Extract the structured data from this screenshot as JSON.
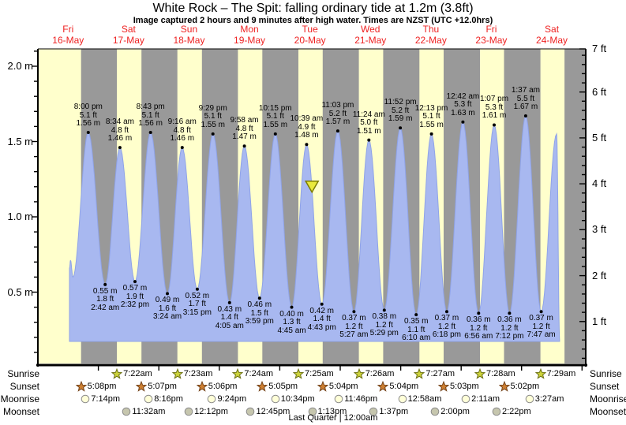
{
  "title": "White Rock – The Spit: falling  ordinary tide at 1.2m (3.8ft)",
  "subtitle": "Image captured 2 hours and 9 minutes after high water. Times are NZST (UTC +12.0hrs)",
  "days": [
    {
      "name": "Fri",
      "date": "16-May"
    },
    {
      "name": "Sat",
      "date": "17-May"
    },
    {
      "name": "Sun",
      "date": "18-May"
    },
    {
      "name": "Mon",
      "date": "19-May"
    },
    {
      "name": "Tue",
      "date": "20-May"
    },
    {
      "name": "Wed",
      "date": "21-May"
    },
    {
      "name": "Thu",
      "date": "22-May"
    },
    {
      "name": "Fri",
      "date": "23-May"
    },
    {
      "name": "Sat",
      "date": "24-May"
    }
  ],
  "colors": {
    "day_band": "#ffffcc",
    "night_band": "#999999",
    "water": "#a8b8f0",
    "water_edge": "#8fa3e8",
    "day_label": "#ee2222",
    "axis": "#000000",
    "annotation": "#000000",
    "marker_fill": "#e9e93c",
    "marker_stroke": "#7c7c00",
    "sunrise_icon": "#ccd23a",
    "sunrise_icon_stroke": "#6b7015",
    "sunset_icon": "#cd7f32",
    "sunset_icon_stroke": "#74431a",
    "moonrise_icon": "#ffffd8",
    "moonset_icon": "#c6c6ae",
    "moon_icon_stroke": "#8c8c8c"
  },
  "chart_data": {
    "type": "area",
    "title": "White Rock – The Spit tide curve, 16–24 May",
    "x_unit": "hours since Fri 16-May 00:00 NZST",
    "y_unit_left": "m",
    "y_unit_right": "ft",
    "ylim_m": [
      0,
      2.12
    ],
    "xlim_hours": [
      0,
      217.46
    ],
    "grid": false,
    "curve_base_m": 0.17,
    "curve_start": [
      {
        "t": 12.53,
        "m": 0.66
      },
      {
        "t": 12.95,
        "m": 0.71
      },
      {
        "t": 13.9,
        "m": 0.6
      }
    ],
    "curve_end": [
      {
        "t": 207.1,
        "m": 0.18
      }
    ],
    "tide_extremes": [
      {
        "type": "high",
        "t": 20.0,
        "m": 1.56,
        "labels": {
          "time": "8:00 pm",
          "ft": "5.1 ft",
          "m": "1.56 m"
        }
      },
      {
        "type": "low",
        "t": 26.7,
        "m": 0.55,
        "labels": {
          "time": "2:42 am",
          "ft": "1.8 ft",
          "m": "0.55 m"
        }
      },
      {
        "type": "high",
        "t": 32.567,
        "m": 1.46,
        "labels": {
          "time": "8:34 am",
          "ft": "4.8 ft",
          "m": "1.46 m"
        }
      },
      {
        "type": "low",
        "t": 38.533,
        "m": 0.57,
        "labels": {
          "time": "2:32 pm",
          "ft": "1.9 ft",
          "m": "0.57 m"
        }
      },
      {
        "type": "high",
        "t": 44.717,
        "m": 1.56,
        "labels": {
          "time": "8:43 pm",
          "ft": "5.1 ft",
          "m": "1.56 m"
        }
      },
      {
        "type": "low",
        "t": 51.4,
        "m": 0.49,
        "labels": {
          "time": "3:24 am",
          "ft": "1.6 ft",
          "m": "0.49 m"
        }
      },
      {
        "type": "high",
        "t": 57.267,
        "m": 1.46,
        "labels": {
          "time": "9:16 am",
          "ft": "4.8 ft",
          "m": "1.46 m"
        }
      },
      {
        "type": "low",
        "t": 63.25,
        "m": 0.52,
        "labels": {
          "time": "3:15 pm",
          "ft": "1.7 ft",
          "m": "0.52 m"
        }
      },
      {
        "type": "high",
        "t": 69.483,
        "m": 1.55,
        "labels": {
          "time": "9:29 pm",
          "ft": "5.1 ft",
          "m": "1.55 m"
        }
      },
      {
        "type": "low",
        "t": 76.083,
        "m": 0.43,
        "labels": {
          "time": "4:05 am",
          "ft": "1.4 ft",
          "m": "0.43 m"
        }
      },
      {
        "type": "high",
        "t": 81.967,
        "m": 1.47,
        "labels": {
          "time": "9:58 am",
          "ft": "4.8 ft",
          "m": "1.47 m"
        }
      },
      {
        "type": "low",
        "t": 87.983,
        "m": 0.46,
        "labels": {
          "time": "3:59 pm",
          "ft": "1.5 ft",
          "m": "0.46 m"
        }
      },
      {
        "type": "high",
        "t": 94.25,
        "m": 1.55,
        "labels": {
          "time": "10:15 pm",
          "ft": "5.1 ft",
          "m": "1.55 m"
        }
      },
      {
        "type": "low",
        "t": 100.75,
        "m": 0.4,
        "labels": {
          "time": "4:45 am",
          "ft": "1.3 ft",
          "m": "0.40 m"
        }
      },
      {
        "type": "high",
        "t": 106.65,
        "m": 1.48,
        "labels": {
          "time": "10:39 am",
          "ft": "4.9 ft",
          "m": "1.48 m"
        }
      },
      {
        "type": "low",
        "t": 112.717,
        "m": 0.42,
        "labels": {
          "time": "4:43 pm",
          "ft": "1.4 ft",
          "m": "0.42 m"
        }
      },
      {
        "type": "high",
        "t": 119.05,
        "m": 1.57,
        "labels": {
          "time": "11:03 pm",
          "ft": "5.2 ft",
          "m": "1.57 m"
        }
      },
      {
        "type": "low",
        "t": 125.45,
        "m": 0.37,
        "labels": {
          "time": "5:27 am",
          "ft": "1.2 ft",
          "m": "0.37 m"
        }
      },
      {
        "type": "high",
        "t": 131.4,
        "m": 1.51,
        "labels": {
          "time": "11:24 am",
          "ft": "5.0 ft",
          "m": "1.51 m"
        }
      },
      {
        "type": "low",
        "t": 137.483,
        "m": 0.38,
        "labels": {
          "time": "5:29 pm",
          "ft": "1.2 ft",
          "m": "0.38 m"
        }
      },
      {
        "type": "high",
        "t": 143.867,
        "m": 1.59,
        "labels": {
          "time": "11:52 pm",
          "ft": "5.2 ft",
          "m": "1.59 m"
        }
      },
      {
        "type": "low",
        "t": 150.167,
        "m": 0.35,
        "labels": {
          "time": "6:10 am",
          "ft": "1.1 ft",
          "m": "0.35 m"
        }
      },
      {
        "type": "high",
        "t": 156.217,
        "m": 1.55,
        "labels": {
          "time": "12:13 pm",
          "ft": "5.1 ft",
          "m": "1.55 m"
        }
      },
      {
        "type": "low",
        "t": 162.3,
        "m": 0.37,
        "labels": {
          "time": "6:18 pm",
          "ft": "1.2 ft",
          "m": "0.37 m"
        }
      },
      {
        "type": "high",
        "t": 168.7,
        "m": 1.63,
        "labels": {
          "time": "12:42 am",
          "ft": "5.3 ft",
          "m": "1.63 m"
        }
      },
      {
        "type": "low",
        "t": 174.933,
        "m": 0.36,
        "labels": {
          "time": "6:56 am",
          "ft": "1.2 ft",
          "m": "0.36 m"
        }
      },
      {
        "type": "high",
        "t": 181.117,
        "m": 1.61,
        "labels": {
          "time": "1:07 pm",
          "ft": "5.3 ft",
          "m": "1.61 m"
        }
      },
      {
        "type": "low",
        "t": 187.2,
        "m": 0.36,
        "labels": {
          "time": "7:12 pm",
          "ft": "1.2 ft",
          "m": "0.36 m"
        }
      },
      {
        "type": "high",
        "t": 193.617,
        "m": 1.67,
        "labels": {
          "time": "1:37 am",
          "ft": "5.5 ft",
          "m": "1.67 m"
        }
      },
      {
        "type": "low",
        "t": 199.783,
        "m": 0.37,
        "labels": {
          "time": "7:47 am",
          "ft": "1.2 ft",
          "m": "0.37 m"
        }
      },
      {
        "type": "high",
        "t": 205.9,
        "m": 1.55
      }
    ],
    "current_marker": {
      "t": 108.8,
      "m": 1.2
    },
    "night_bands_hours": [
      [
        17.133,
        31.367
      ],
      [
        41.117,
        55.383
      ],
      [
        65.1,
        79.4
      ],
      [
        89.083,
        103.417
      ],
      [
        113.067,
        127.433
      ],
      [
        137.067,
        151.45
      ],
      [
        161.05,
        175.467
      ],
      [
        185.033,
        199.483
      ],
      [
        209.033,
        217.46
      ]
    ],
    "left_ticks": [
      {
        "m": 0.5,
        "label": "0.5 m"
      },
      {
        "m": 1.0,
        "label": "1.0 m"
      },
      {
        "m": 1.5,
        "label": "1.5 m"
      },
      {
        "m": 2.0,
        "label": "2.0 m"
      }
    ],
    "right_ticks": [
      {
        "ft": 1,
        "label": "1 ft"
      },
      {
        "ft": 2,
        "label": "2 ft"
      },
      {
        "ft": 3,
        "label": "3 ft"
      },
      {
        "ft": 4,
        "label": "4 ft"
      },
      {
        "ft": 5,
        "label": "5 ft"
      },
      {
        "ft": 6,
        "label": "6 ft"
      },
      {
        "ft": 7,
        "label": "7 ft"
      }
    ]
  },
  "astro": {
    "rows": [
      {
        "key": "sunrise",
        "label": "Sunrise",
        "icon": "sunrise",
        "entries": [
          {
            "time": "7:22am",
            "t": 31.367
          },
          {
            "time": "7:23am",
            "t": 55.383
          },
          {
            "time": "7:24am",
            "t": 79.4
          },
          {
            "time": "7:25am",
            "t": 103.417
          },
          {
            "time": "7:26am",
            "t": 127.433
          },
          {
            "time": "7:27am",
            "t": 151.45
          },
          {
            "time": "7:28am",
            "t": 175.467
          },
          {
            "time": "7:29am",
            "t": 199.483
          }
        ]
      },
      {
        "key": "sunset",
        "label": "Sunset",
        "icon": "sunset",
        "entries": [
          {
            "time": "5:08pm",
            "t": 17.133
          },
          {
            "time": "5:07pm",
            "t": 41.117
          },
          {
            "time": "5:06pm",
            "t": 65.1
          },
          {
            "time": "5:05pm",
            "t": 89.083
          },
          {
            "time": "5:04pm",
            "t": 113.067
          },
          {
            "time": "5:04pm",
            "t": 137.067
          },
          {
            "time": "5:03pm",
            "t": 161.05
          },
          {
            "time": "5:02pm",
            "t": 185.033
          }
        ]
      },
      {
        "key": "moonrise",
        "label": "Moonrise",
        "icon": "moonrise",
        "entries": [
          {
            "time": "7:14pm",
            "t": 19.233
          },
          {
            "time": "8:16pm",
            "t": 44.267
          },
          {
            "time": "9:24pm",
            "t": 69.4
          },
          {
            "time": "10:34pm",
            "t": 94.567
          },
          {
            "time": "11:46pm",
            "t": 119.767
          },
          {
            "time": "12:58am",
            "t": 144.967
          },
          {
            "time": "2:11am",
            "t": 170.183
          },
          {
            "time": "3:27am",
            "t": 195.45
          }
        ]
      },
      {
        "key": "moonset",
        "label": "Moonset",
        "icon": "moonset",
        "entries": [
          {
            "time": "11:32am",
            "t": 35.533
          },
          {
            "time": "12:12pm",
            "t": 60.2
          },
          {
            "time": "12:45pm",
            "t": 84.75
          },
          {
            "time": "1:13pm",
            "t": 109.217
          },
          {
            "time": "1:37pm",
            "t": 133.617
          },
          {
            "time": "2:00pm",
            "t": 158.0
          },
          {
            "time": "2:22pm",
            "t": 182.367
          }
        ]
      }
    ],
    "moon_phase": "Last Quarter | 12:00am"
  }
}
